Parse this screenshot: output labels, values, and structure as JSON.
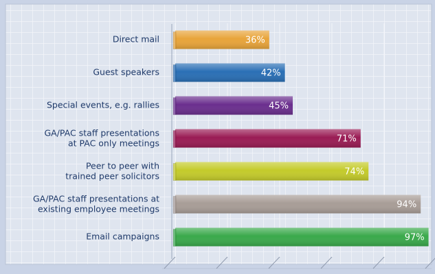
{
  "chart_data": {
    "type": "bar",
    "orientation": "horizontal",
    "categories": [
      "Direct mail",
      "Guest speakers",
      "Special events, e.g. rallies",
      "GA/PAC staff presentations\nat PAC only meetings",
      "Peer to peer with\ntrained peer solicitors",
      "GA/PAC staff presentations at\nexisting employee meetings",
      "Email campaigns"
    ],
    "values": [
      36,
      42,
      45,
      71,
      74,
      94,
      97
    ],
    "value_labels": [
      "36%",
      "42%",
      "45%",
      "71%",
      "74%",
      "94%",
      "97%"
    ],
    "colors": [
      "#e8a43a",
      "#2a6fb5",
      "#6b2f8e",
      "#9a1c55",
      "#c4cb2b",
      "#a89d97",
      "#3aa94b"
    ],
    "xlim": [
      0,
      100
    ],
    "xticks": [
      0,
      20,
      40,
      60,
      80,
      100
    ]
  }
}
